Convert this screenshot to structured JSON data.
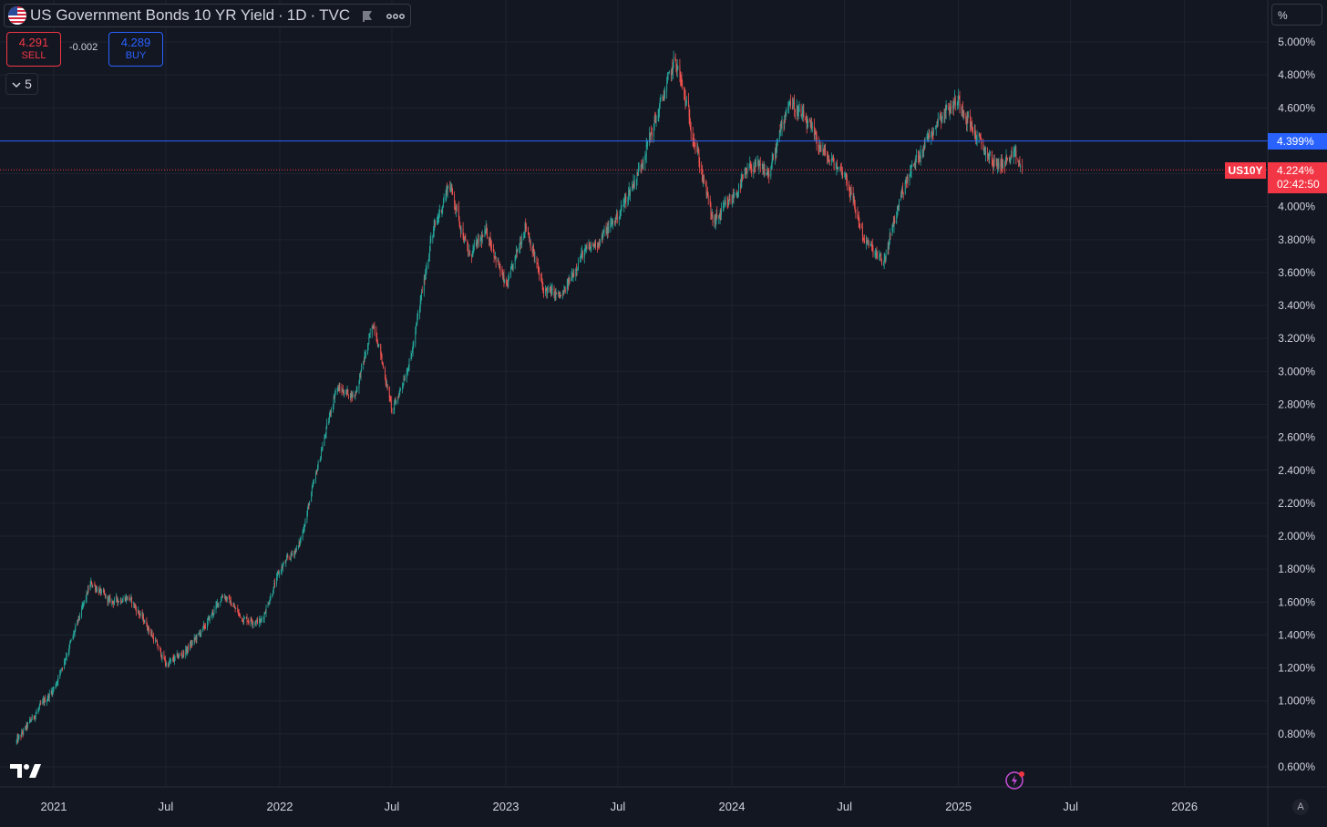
{
  "header": {
    "symbol_title": "US Government Bonds 10 YR Yield",
    "interval": "1D",
    "exchange": "TVC",
    "separator": "·",
    "more_icon": "more-dots-icon",
    "flag_icon": "us-flag-icon"
  },
  "trade": {
    "sell_price": "4.291",
    "sell_label": "SELL",
    "spread": "-0.002",
    "buy_price": "4.289",
    "buy_label": "BUY"
  },
  "indicators": {
    "count": "5",
    "toggle_icon": "chevron-down-icon"
  },
  "scale_unit": "%",
  "price_axis": {
    "labels": [
      "5.000%",
      "4.800%",
      "4.600%",
      "4.400%",
      "4.200%",
      "4.000%",
      "3.800%",
      "3.600%",
      "3.400%",
      "3.200%",
      "3.000%",
      "2.800%",
      "2.600%",
      "2.400%",
      "2.200%",
      "2.000%",
      "1.800%",
      "1.600%",
      "1.400%",
      "1.200%",
      "1.000%",
      "0.800%",
      "0.600%"
    ]
  },
  "time_axis": {
    "labels": [
      "2021",
      "Jul",
      "2022",
      "Jul",
      "2023",
      "Jul",
      "2024",
      "Jul",
      "2025",
      "Jul",
      "2026"
    ]
  },
  "horizontal_line": {
    "price": "4.399%",
    "color": "#2962ff"
  },
  "last_price": {
    "symbol": "US10Y",
    "price": "4.224%",
    "countdown": "02:42:50",
    "color": "#f23645"
  },
  "auto_scale_label": "A",
  "colors": {
    "background": "#131722",
    "up": "#26a69a",
    "down": "#ef5350",
    "grid": "#1f2330"
  },
  "chart_data": {
    "type": "candlestick",
    "interval": "1D",
    "unit": "%",
    "ylim": [
      0.5,
      5.05
    ],
    "x_range": [
      "2020-11",
      "2026-03"
    ],
    "grid": true,
    "key_points": [
      {
        "date": "2020-11",
        "y": 0.75
      },
      {
        "date": "2020-12",
        "y": 0.92
      },
      {
        "date": "2021-01",
        "y": 1.08
      },
      {
        "date": "2021-02",
        "y": 1.4
      },
      {
        "date": "2021-03",
        "y": 1.72
      },
      {
        "date": "2021-04",
        "y": 1.6
      },
      {
        "date": "2021-05",
        "y": 1.63
      },
      {
        "date": "2021-06",
        "y": 1.45
      },
      {
        "date": "2021-07",
        "y": 1.22
      },
      {
        "date": "2021-08",
        "y": 1.3
      },
      {
        "date": "2021-09",
        "y": 1.45
      },
      {
        "date": "2021-10",
        "y": 1.65
      },
      {
        "date": "2021-11",
        "y": 1.5
      },
      {
        "date": "2021-12",
        "y": 1.48
      },
      {
        "date": "2022-01",
        "y": 1.8
      },
      {
        "date": "2022-02",
        "y": 1.95
      },
      {
        "date": "2022-03",
        "y": 2.4
      },
      {
        "date": "2022-04",
        "y": 2.9
      },
      {
        "date": "2022-05",
        "y": 2.85
      },
      {
        "date": "2022-06",
        "y": 3.3
      },
      {
        "date": "2022-07",
        "y": 2.75
      },
      {
        "date": "2022-08",
        "y": 3.1
      },
      {
        "date": "2022-09",
        "y": 3.8
      },
      {
        "date": "2022-10",
        "y": 4.15
      },
      {
        "date": "2022-11",
        "y": 3.7
      },
      {
        "date": "2022-12",
        "y": 3.85
      },
      {
        "date": "2023-01",
        "y": 3.5
      },
      {
        "date": "2023-02",
        "y": 3.9
      },
      {
        "date": "2023-03",
        "y": 3.5
      },
      {
        "date": "2023-04",
        "y": 3.45
      },
      {
        "date": "2023-05",
        "y": 3.7
      },
      {
        "date": "2023-06",
        "y": 3.8
      },
      {
        "date": "2023-07",
        "y": 3.95
      },
      {
        "date": "2023-08",
        "y": 4.2
      },
      {
        "date": "2023-09",
        "y": 4.55
      },
      {
        "date": "2023-10",
        "y": 4.9
      },
      {
        "date": "2023-11",
        "y": 4.4
      },
      {
        "date": "2023-12",
        "y": 3.9
      },
      {
        "date": "2024-01",
        "y": 4.05
      },
      {
        "date": "2024-02",
        "y": 4.25
      },
      {
        "date": "2024-03",
        "y": 4.2
      },
      {
        "date": "2024-04",
        "y": 4.65
      },
      {
        "date": "2024-05",
        "y": 4.5
      },
      {
        "date": "2024-06",
        "y": 4.3
      },
      {
        "date": "2024-07",
        "y": 4.2
      },
      {
        "date": "2024-08",
        "y": 3.8
      },
      {
        "date": "2024-09",
        "y": 3.65
      },
      {
        "date": "2024-10",
        "y": 4.1
      },
      {
        "date": "2024-11",
        "y": 4.35
      },
      {
        "date": "2024-12",
        "y": 4.55
      },
      {
        "date": "2025-01",
        "y": 4.65
      },
      {
        "date": "2025-02",
        "y": 4.4
      },
      {
        "date": "2025-03",
        "y": 4.25
      },
      {
        "date": "2025-04",
        "y": 4.3
      },
      {
        "date": "2025-04-15",
        "y": 4.224
      }
    ]
  }
}
